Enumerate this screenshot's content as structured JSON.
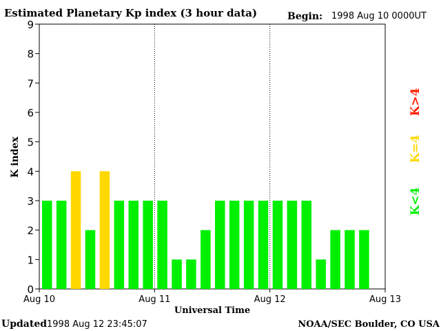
{
  "header": {
    "title": "Estimated Planetary Kp index (3 hour data)",
    "begin_label": "Begin:",
    "begin_value": "1998 Aug 10 0000UT"
  },
  "footer": {
    "updated_label": "Updated",
    "updated_value": "1998 Aug 12 23:45:07",
    "credit": "NOAA/SEC Boulder, CO USA"
  },
  "legend": {
    "high": "K>4",
    "equal": "K=4",
    "low": "K<4"
  },
  "colors": {
    "low": "#00f000",
    "equal": "#ffd800",
    "high": "#ff2000",
    "axis": "#000000"
  },
  "chart_data": {
    "type": "bar",
    "title": "Estimated Planetary Kp index (3 hour data)",
    "xlabel": "Universal Time",
    "ylabel": "K index",
    "ylim": [
      0,
      9
    ],
    "yticks": [
      0,
      1,
      2,
      3,
      4,
      5,
      6,
      7,
      8,
      9
    ],
    "xticks": [
      "Aug 10",
      "Aug 11",
      "Aug 12",
      "Aug 13"
    ],
    "bars_per_day": 8,
    "values": [
      3,
      3,
      4,
      2,
      4,
      3,
      3,
      3,
      3,
      1,
      1,
      2,
      3,
      3,
      3,
      3,
      3,
      3,
      3,
      1,
      2,
      2,
      2
    ],
    "day_dividers": [
      "Aug 11",
      "Aug 12"
    ]
  }
}
